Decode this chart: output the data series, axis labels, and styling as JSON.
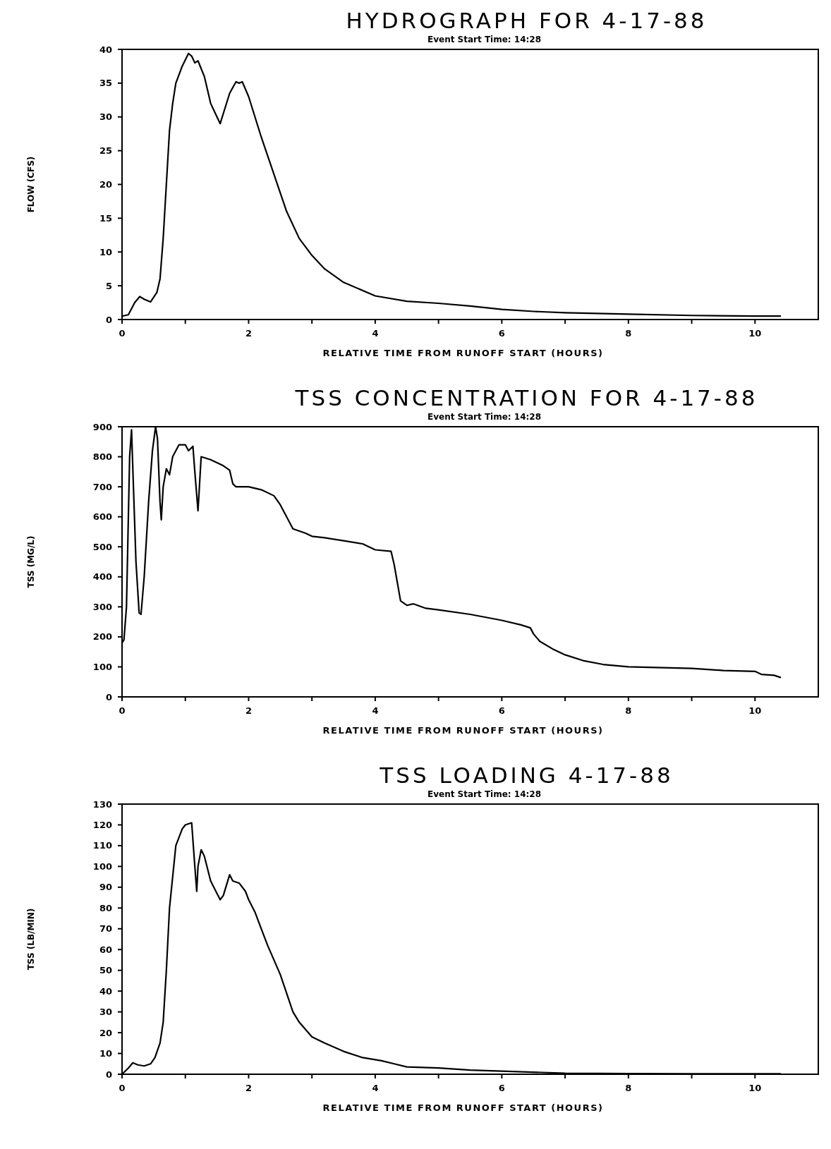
{
  "chart_data": [
    {
      "type": "line",
      "title": "HYDROGRAPH FOR 4-17-88",
      "subtitle": "Event Start Time: 14:28",
      "xlabel": "RELATIVE TIME FROM RUNOFF START (HOURS)",
      "ylabel": "FLOW (CFS)",
      "xlim": [
        0,
        11
      ],
      "xticks": [
        0,
        {
          "value": 1,
          "label": null
        },
        2,
        {
          "value": 3,
          "label": null
        },
        4,
        {
          "value": 5,
          "label": null
        },
        6,
        {
          "value": 7,
          "label": null
        },
        8,
        {
          "value": 9,
          "label": null
        },
        10
      ],
      "ylim": [
        0,
        40
      ],
      "yticks": [
        0,
        5,
        10,
        15,
        20,
        25,
        30,
        35,
        40
      ],
      "grid": false,
      "marker": "none",
      "line_style": "solid",
      "series": [
        {
          "color": "#000000",
          "x": [
            0,
            0.1,
            0.2,
            0.28,
            0.35,
            0.45,
            0.55,
            0.6,
            0.65,
            0.7,
            0.75,
            0.8,
            0.85,
            0.95,
            1.05,
            1.1,
            1.15,
            1.2,
            1.3,
            1.4,
            1.45,
            1.55,
            1.6,
            1.7,
            1.8,
            1.85,
            1.9,
            2.0,
            2.1,
            2.2,
            2.4,
            2.6,
            2.8,
            3.0,
            3.2,
            3.5,
            4.0,
            4.5,
            5.0,
            5.5,
            6.0,
            6.5,
            7.0,
            8.0,
            9.0,
            10.0,
            10.4
          ],
          "values": [
            0.5,
            0.7,
            2.5,
            3.4,
            3.0,
            2.6,
            4,
            6,
            12,
            20,
            28,
            32,
            35,
            37.5,
            39.4,
            39,
            38,
            38.3,
            36,
            32,
            31,
            29,
            30.5,
            33.5,
            35.2,
            35,
            35.2,
            33,
            30,
            27,
            21.5,
            16,
            12,
            9.5,
            7.5,
            5.5,
            3.5,
            2.7,
            2.4,
            2.0,
            1.5,
            1.2,
            1.0,
            0.8,
            0.6,
            0.5,
            0.5
          ]
        }
      ]
    },
    {
      "type": "line",
      "title": "TSS CONCENTRATION FOR 4-17-88",
      "subtitle": "Event Start Time: 14:28",
      "xlabel": "RELATIVE TIME FROM RUNOFF START (HOURS)",
      "ylabel": "TSS (MG/L)",
      "xlim": [
        0,
        11
      ],
      "xticks": [
        0,
        {
          "value": 1,
          "label": null
        },
        2,
        {
          "value": 3,
          "label": null
        },
        4,
        {
          "value": 5,
          "label": null
        },
        6,
        {
          "value": 7,
          "label": null
        },
        8,
        {
          "value": 9,
          "label": null
        },
        10
      ],
      "ylim": [
        0,
        900
      ],
      "yticks": [
        0,
        100,
        200,
        300,
        400,
        500,
        600,
        700,
        800,
        900
      ],
      "grid": false,
      "marker": "none",
      "line_style": "solid",
      "series": [
        {
          "color": "#000000",
          "x": [
            0,
            0.03,
            0.07,
            0.1,
            0.12,
            0.15,
            0.18,
            0.22,
            0.27,
            0.3,
            0.35,
            0.42,
            0.48,
            0.53,
            0.56,
            0.6,
            0.62,
            0.65,
            0.7,
            0.75,
            0.8,
            0.9,
            1.0,
            1.05,
            1.12,
            1.15,
            1.2,
            1.25,
            1.4,
            1.6,
            1.7,
            1.75,
            1.8,
            2.0,
            2.2,
            2.4,
            2.5,
            2.6,
            2.7,
            2.9,
            3.0,
            3.2,
            3.5,
            3.8,
            4.0,
            4.25,
            4.3,
            4.35,
            4.4,
            4.5,
            4.6,
            4.8,
            5.0,
            5.5,
            6.0,
            6.3,
            6.45,
            6.5,
            6.6,
            6.8,
            7.0,
            7.3,
            7.6,
            8.0,
            9.0,
            9.5,
            10.0,
            10.1,
            10.3,
            10.4
          ],
          "values": [
            180,
            190,
            300,
            600,
            800,
            890,
            700,
            450,
            280,
            275,
            400,
            650,
            820,
            900,
            860,
            650,
            590,
            700,
            760,
            740,
            800,
            840,
            840,
            820,
            835,
            750,
            620,
            800,
            790,
            770,
            755,
            710,
            700,
            700,
            690,
            670,
            640,
            600,
            560,
            545,
            535,
            530,
            520,
            510,
            490,
            485,
            440,
            380,
            320,
            305,
            310,
            295,
            290,
            275,
            255,
            240,
            230,
            210,
            185,
            160,
            140,
            120,
            108,
            100,
            95,
            88,
            85,
            75,
            72,
            65
          ]
        }
      ]
    },
    {
      "type": "line",
      "title": "TSS LOADING 4-17-88",
      "subtitle": "Event Start Time: 14:28",
      "xlabel": "RELATIVE TIME FROM RUNOFF START (HOURS)",
      "ylabel": "TSS (LB/MIN)",
      "xlim": [
        0,
        11
      ],
      "xticks": [
        0,
        {
          "value": 1,
          "label": null
        },
        2,
        {
          "value": 3,
          "label": null
        },
        4,
        {
          "value": 5,
          "label": null
        },
        6,
        {
          "value": 7,
          "label": null
        },
        8,
        {
          "value": 9,
          "label": null
        },
        10
      ],
      "ylim": [
        0,
        130
      ],
      "yticks": [
        0,
        10,
        20,
        30,
        40,
        50,
        60,
        70,
        80,
        90,
        100,
        110,
        120,
        130
      ],
      "grid": false,
      "marker": "none",
      "line_style": "solid",
      "series": [
        {
          "color": "#000000",
          "x": [
            0,
            0.1,
            0.17,
            0.25,
            0.35,
            0.45,
            0.52,
            0.6,
            0.65,
            0.7,
            0.75,
            0.85,
            0.95,
            1.0,
            1.1,
            1.15,
            1.18,
            1.2,
            1.25,
            1.3,
            1.4,
            1.5,
            1.55,
            1.6,
            1.7,
            1.75,
            1.85,
            1.95,
            2.0,
            2.1,
            2.2,
            2.3,
            2.5,
            2.7,
            2.8,
            3.0,
            3.2,
            3.5,
            3.8,
            4.1,
            4.3,
            4.5,
            5.0,
            5.5,
            6.0,
            6.5,
            7.0,
            8.0,
            9.0,
            10.4
          ],
          "values": [
            0,
            3,
            5.5,
            4.5,
            4,
            5,
            8,
            15,
            25,
            50,
            80,
            110,
            118,
            120,
            121,
            100,
            88,
            100,
            108,
            105,
            93,
            87,
            84,
            86,
            96,
            93,
            92,
            88,
            84,
            78,
            70,
            62,
            48,
            30,
            25,
            18,
            15,
            11,
            8,
            6.5,
            5,
            3.5,
            3,
            2,
            1.5,
            1,
            0.5,
            0.3,
            0.2,
            0.2
          ]
        }
      ]
    }
  ]
}
